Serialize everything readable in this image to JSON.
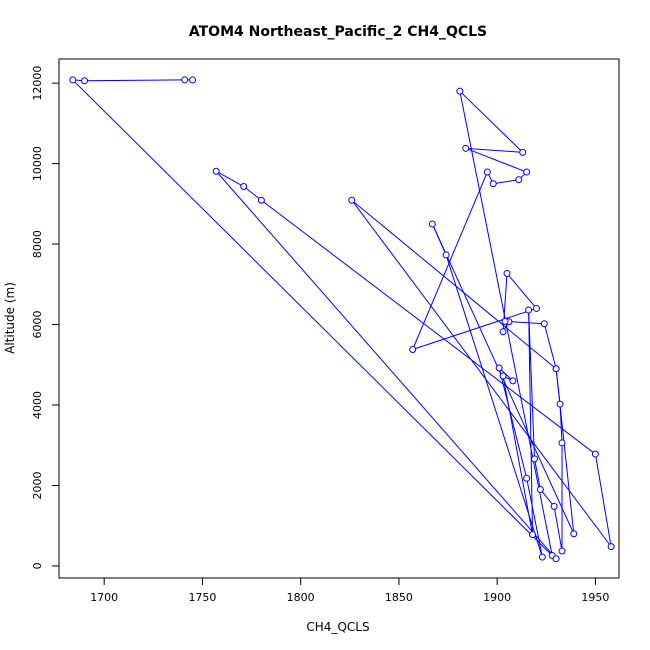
{
  "chart_data": {
    "type": "scatter",
    "title": "ATOM4 Northeast_Pacific_2 CH4_QCLS",
    "xlabel": "CH4_QCLS",
    "ylabel": "Altitude (m)",
    "xlim": [
      1677,
      1962
    ],
    "ylim": [
      -300,
      12600
    ],
    "xticks": [
      1700,
      1750,
      1800,
      1850,
      1900,
      1950
    ],
    "yticks": [
      0,
      2000,
      4000,
      6000,
      8000,
      10000,
      12000
    ],
    "grid": false,
    "color": "#0000ff",
    "series": [
      {
        "points": [
          [
            1745,
            12080
          ],
          [
            1741,
            12080
          ],
          [
            1690,
            12060
          ],
          [
            1684,
            12080
          ],
          [
            1928,
            260
          ],
          [
            1881,
            11800
          ],
          [
            1913,
            10280
          ],
          [
            1884,
            10380
          ],
          [
            1915,
            9790
          ],
          [
            1911,
            9600
          ],
          [
            1898,
            9500
          ],
          [
            1895,
            9790
          ],
          [
            1857,
            5380
          ],
          [
            1920,
            6400
          ],
          [
            1905,
            7270
          ],
          [
            1903,
            5820
          ],
          [
            1906,
            6070
          ],
          [
            1904,
            6080
          ],
          [
            1924,
            6020
          ],
          [
            1930,
            4900
          ],
          [
            1932,
            4020
          ],
          [
            1933,
            3060
          ],
          [
            1933,
            370
          ],
          [
            1929,
            1480
          ],
          [
            1922,
            1900
          ],
          [
            1919,
            2660
          ],
          [
            1916,
            6360
          ],
          [
            1918,
            780
          ],
          [
            1903,
            4720
          ],
          [
            1908,
            4600
          ],
          [
            1901,
            4920
          ],
          [
            1915,
            2180
          ],
          [
            1923,
            220
          ],
          [
            1874,
            7730
          ],
          [
            1867,
            8500
          ],
          [
            1939,
            800
          ],
          [
            1930,
            4900
          ],
          [
            1826,
            9090
          ],
          [
            1958,
            480
          ],
          [
            1950,
            2780
          ],
          [
            1780,
            9090
          ],
          [
            1771,
            9430
          ],
          [
            1757,
            9810
          ],
          [
            1930,
            180
          ]
        ]
      }
    ]
  }
}
